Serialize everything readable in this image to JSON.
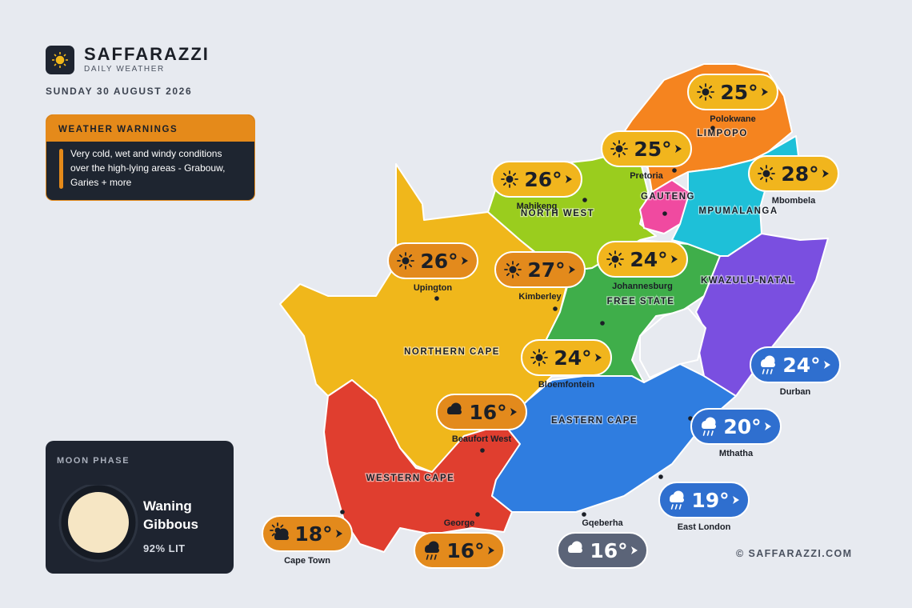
{
  "header": {
    "brand": "SAFFARAZZI",
    "subtitle": "DAILY WEATHER",
    "date": "SUNDAY 30 AUGUST 2026"
  },
  "warning": {
    "title": "WEATHER WARNINGS",
    "text": "Very cold, wet and windy conditions over the high-lying areas - Grabouw, Garies + more"
  },
  "moon": {
    "title": "MOON PHASE",
    "phase": "Waning Gibbous",
    "lit": "92% LIT"
  },
  "provinces": [
    {
      "name": "LIMPOPO"
    },
    {
      "name": "GAUTENG"
    },
    {
      "name": "MPUMALANGA"
    },
    {
      "name": "NORTH WEST"
    },
    {
      "name": "KWAZULU-NATAL"
    },
    {
      "name": "FREE STATE"
    },
    {
      "name": "NORTHERN CAPE"
    },
    {
      "name": "EASTERN CAPE"
    },
    {
      "name": "WESTERN CAPE"
    }
  ],
  "cities": [
    {
      "name": "Polokwane",
      "temp": "25°"
    },
    {
      "name": "Pretoria",
      "temp": "25°"
    },
    {
      "name": "Mbombela",
      "temp": "28°"
    },
    {
      "name": "Mahikeng",
      "temp": "26°"
    },
    {
      "name": "Upington",
      "temp": "26°"
    },
    {
      "name": "Kimberley",
      "temp": "27°"
    },
    {
      "name": "Johannesburg",
      "temp": "24°"
    },
    {
      "name": "Bloemfontein",
      "temp": "24°"
    },
    {
      "name": "Durban",
      "temp": "24°"
    },
    {
      "name": "Beaufort West",
      "temp": "16°"
    },
    {
      "name": "Mthatha",
      "temp": "20°"
    },
    {
      "name": "East London",
      "temp": "19°"
    },
    {
      "name": "Cape Town",
      "temp": "18°"
    },
    {
      "name": "George",
      "temp": "16°"
    },
    {
      "name": "Gqeberha",
      "temp": "16°"
    }
  ],
  "footer": {
    "copyright": "© SAFFARAZZI.COM"
  }
}
